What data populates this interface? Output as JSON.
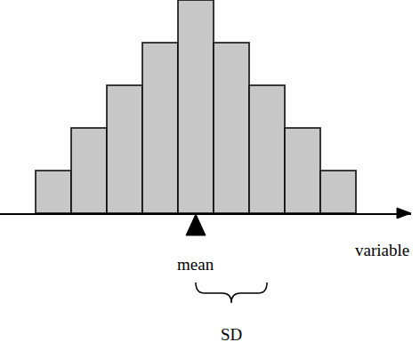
{
  "chart_data": {
    "type": "histogram",
    "x_label": "variable",
    "bins": [
      0,
      1,
      2,
      3,
      4,
      5,
      6,
      7,
      8,
      9
    ],
    "counts": [
      1,
      2,
      3,
      4,
      5,
      4,
      3,
      2,
      1
    ],
    "color": "#c8c8c8",
    "xlim": [
      -1,
      10.55
    ],
    "ylim": [
      0,
      5
    ],
    "tick_labels": false,
    "grid": false,
    "mean": 4.5,
    "mean_label": "mean",
    "sd": 2,
    "sd_label": "SD"
  }
}
